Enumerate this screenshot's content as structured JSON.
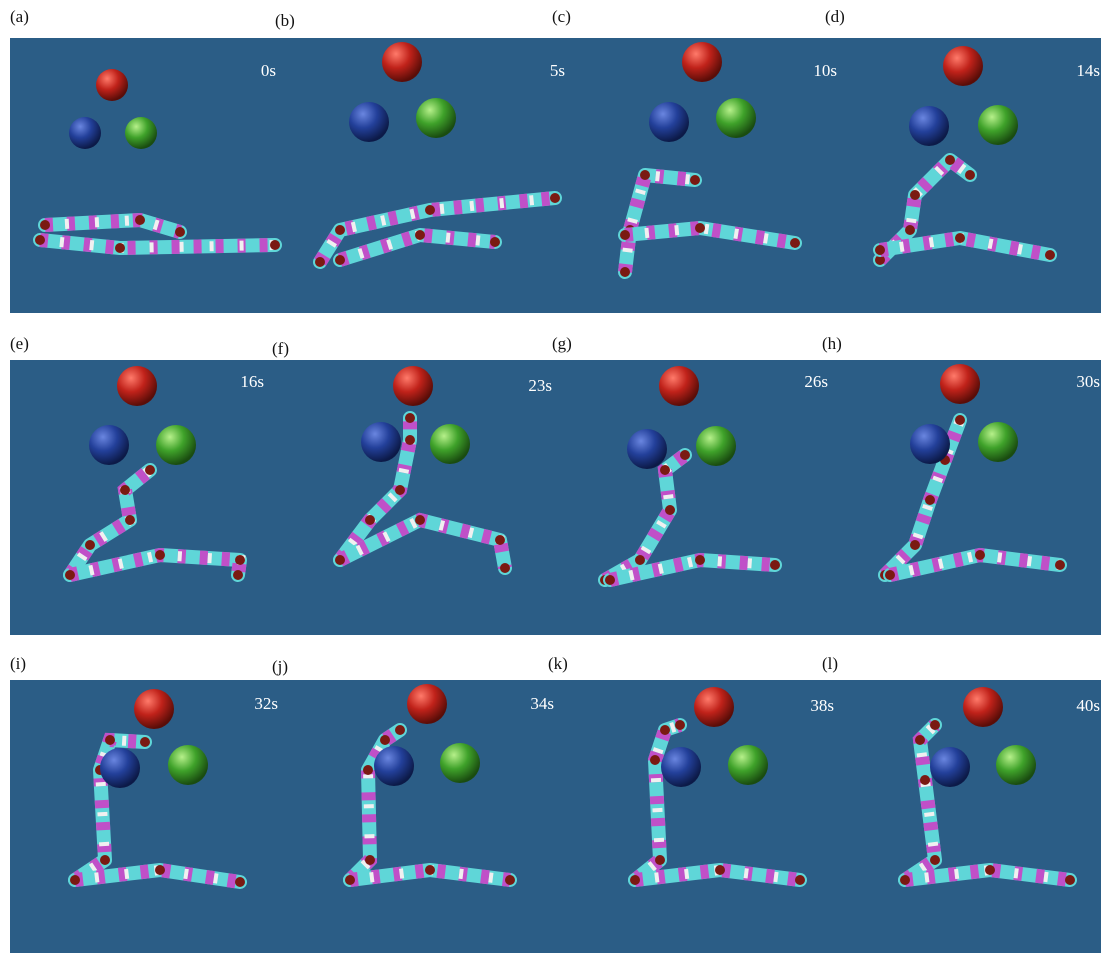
{
  "panels": [
    {
      "label": "(a)",
      "time": "0s"
    },
    {
      "label": "(b)",
      "time": "5s"
    },
    {
      "label": "(c)",
      "time": "10s"
    },
    {
      "label": "(d)",
      "time": "14s"
    },
    {
      "label": "(e)",
      "time": "16s"
    },
    {
      "label": "(f)",
      "time": "23s"
    },
    {
      "label": "(g)",
      "time": "26s"
    },
    {
      "label": "(h)",
      "time": "30s"
    },
    {
      "label": "(i)",
      "time": "32s"
    },
    {
      "label": "(j)",
      "time": "34s"
    },
    {
      "label": "(k)",
      "time": "38s"
    },
    {
      "label": "(l)",
      "time": "40s"
    }
  ]
}
